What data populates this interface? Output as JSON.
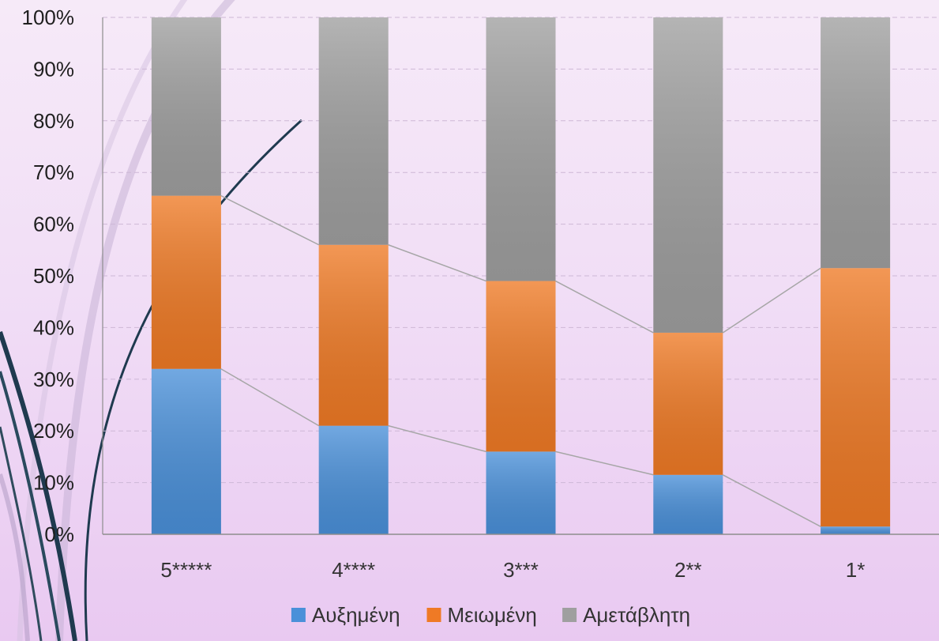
{
  "colors": {
    "series_1": "#4a90d9",
    "series_2": "#ef7a25",
    "series_3": "#9f9f9f",
    "connector": "#a6a6a6",
    "grid": "#cdb8d6",
    "axis": "#8d8d8d"
  },
  "chart_data": {
    "type": "bar",
    "stacked": "percent",
    "categories": [
      "5*****",
      "4****",
      "3***",
      "2**",
      "1*"
    ],
    "series": [
      {
        "name": "Αυξημένη",
        "values": [
          32,
          21,
          16,
          11.5,
          1.5
        ]
      },
      {
        "name": "Μειωμένη",
        "values": [
          33.5,
          35,
          33,
          27.5,
          50
        ]
      },
      {
        "name": "Αμετάβλητη",
        "values": [
          34.5,
          44,
          51,
          61,
          48.5
        ]
      }
    ],
    "y_ticks": [
      "0%",
      "10%",
      "20%",
      "30%",
      "40%",
      "50%",
      "60%",
      "70%",
      "80%",
      "90%",
      "100%"
    ],
    "ylim": [
      0,
      100
    ],
    "grid": true,
    "series_lines": true,
    "legend_position": "bottom"
  }
}
